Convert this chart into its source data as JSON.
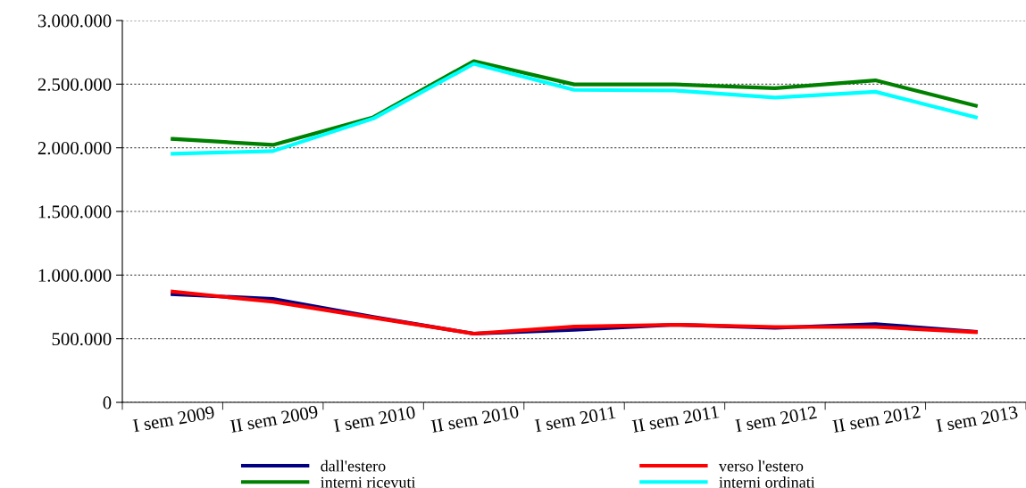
{
  "chart_data": {
    "type": "line",
    "categories": [
      "I sem 2009",
      "II sem 2009",
      "I sem 2010",
      "II sem 2010",
      "I sem 2011",
      "II sem 2011",
      "I sem 2012",
      "II sem 2012",
      "I sem 2013"
    ],
    "series": [
      {
        "name": "dall'estero",
        "color": "#000080",
        "values": [
          850000,
          812000,
          670000,
          540000,
          570000,
          610000,
          585000,
          615000,
          555000
        ]
      },
      {
        "name": "verso l'estero",
        "color": "#ff0000",
        "values": [
          870000,
          790000,
          665000,
          540000,
          595000,
          610000,
          592000,
          592000,
          552000
        ]
      },
      {
        "name": "interni ricevuti",
        "color": "#008000",
        "values": [
          2070000,
          2023000,
          2240000,
          2681000,
          2498000,
          2498000,
          2468000,
          2530000,
          2330000
        ]
      },
      {
        "name": "interni ordinati",
        "color": "#00ffff",
        "values": [
          1953000,
          1974000,
          2230000,
          2660000,
          2455000,
          2450000,
          2395000,
          2440000,
          2240000
        ]
      }
    ],
    "ylim": [
      0,
      3000000
    ],
    "yticks": [
      {
        "value": 0,
        "label": "0"
      },
      {
        "value": 500000,
        "label": "500.000"
      },
      {
        "value": 1000000,
        "label": "1.000.000"
      },
      {
        "value": 1500000,
        "label": "1.500.000"
      },
      {
        "value": 2000000,
        "label": "2.000.000"
      },
      {
        "value": 2500000,
        "label": "2.500.000"
      },
      {
        "value": 3000000,
        "label": "3.000.000"
      }
    ],
    "grid": "y",
    "legend": "bottom",
    "line_style": "solid",
    "marker": "none"
  }
}
